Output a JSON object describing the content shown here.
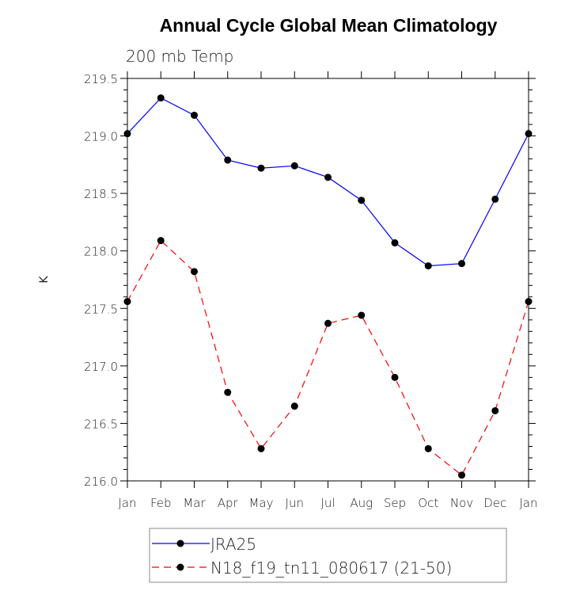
{
  "chart_data": {
    "type": "line",
    "title": "Annual Cycle Global Mean Climatology",
    "subtitle": "200 mb Temp",
    "xlabel": "",
    "ylabel": "K",
    "ylim": [
      216.0,
      219.5
    ],
    "yticks": [
      "216.0",
      "216.5",
      "217.0",
      "217.5",
      "218.0",
      "218.5",
      "219.0",
      "219.5"
    ],
    "categories": [
      "Jan",
      "Feb",
      "Mar",
      "Apr",
      "May",
      "Jun",
      "Jul",
      "Aug",
      "Sep",
      "Oct",
      "Nov",
      "Dec",
      "Jan"
    ],
    "grid": false,
    "legend_position": "bottom",
    "series": [
      {
        "name": "JRA25",
        "color": "#0000ff",
        "dash": "solid",
        "values": [
          219.02,
          219.33,
          219.18,
          218.79,
          218.72,
          218.74,
          218.64,
          218.44,
          218.07,
          217.87,
          217.89,
          218.45,
          219.02
        ]
      },
      {
        "name": "N18_f19_tn11_080617 (21-50)",
        "color": "#ff0000",
        "dash": "dashed",
        "values": [
          217.56,
          218.09,
          217.82,
          216.77,
          216.28,
          216.65,
          217.37,
          217.44,
          216.9,
          216.28,
          216.05,
          216.61,
          217.56
        ]
      }
    ]
  }
}
